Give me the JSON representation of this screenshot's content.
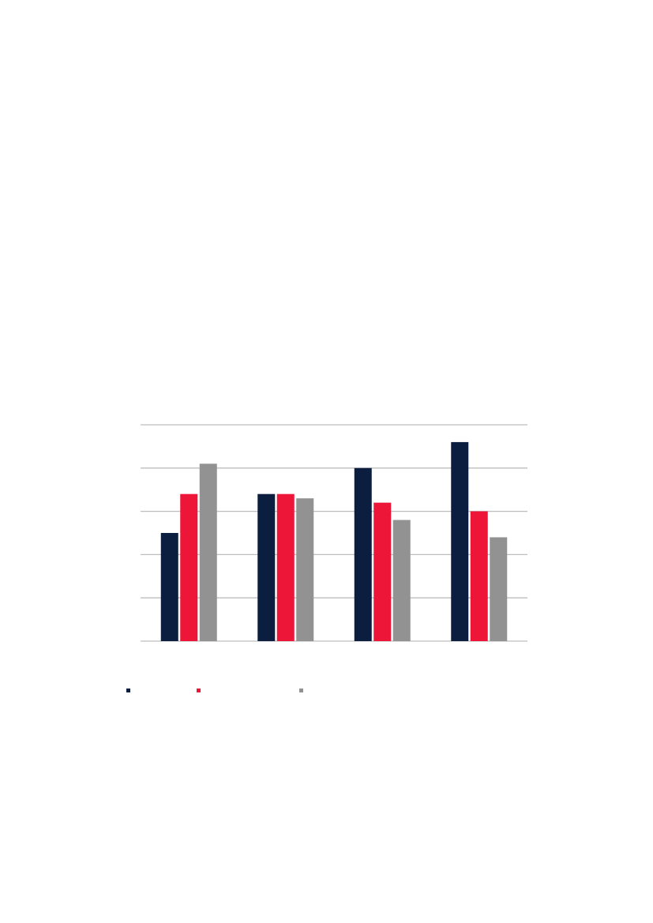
{
  "chart_data": {
    "type": "bar",
    "title": "",
    "xlabel": "",
    "ylabel": "",
    "categories": [
      "",
      "",
      "",
      ""
    ],
    "ylim": [
      0,
      5
    ],
    "grid": true,
    "legend_placement": "bottom-left",
    "series": [
      {
        "color": "#0b1e3f",
        "values": [
          2.5,
          3.4,
          4.0,
          4.6
        ]
      },
      {
        "color": "#ed1639",
        "values": [
          3.4,
          3.4,
          3.2,
          3.0
        ]
      },
      {
        "color": "#939292",
        "values": [
          4.1,
          3.3,
          2.8,
          2.4
        ]
      }
    ]
  },
  "colors": {
    "gridline": "#bdbdbd"
  }
}
